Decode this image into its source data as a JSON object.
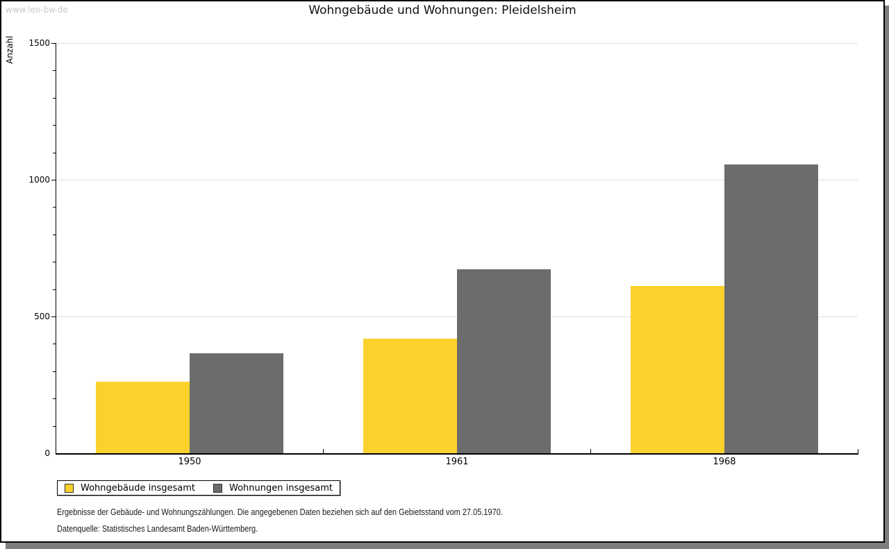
{
  "watermark": "www.leo-bw.de",
  "title": "Wohngebäude und Wohnungen: Pleidelsheim",
  "chart_data": {
    "type": "bar",
    "title": "Wohngebäude und Wohnungen: Pleidelsheim",
    "xlabel": "",
    "ylabel": "Anzahl",
    "categories": [
      "1950",
      "1961",
      "1968"
    ],
    "series": [
      {
        "name": "Wohngebäude insgesamt",
        "color": "#fbd22c",
        "values": [
          262,
          419,
          611
        ]
      },
      {
        "name": "Wohnungen insgesamt",
        "color": "#6c6c6c",
        "values": [
          366,
          672,
          1057
        ]
      }
    ],
    "ylim": [
      0,
      1500
    ],
    "yticks": [
      0,
      500,
      1000,
      1500
    ],
    "minor_tick_step": 100,
    "grid": "horizontal-major",
    "legend_position": "bottom-left"
  },
  "legend": {
    "items": [
      {
        "label": "Wohngebäude insgesamt",
        "color": "#fbd22c"
      },
      {
        "label": "Wohnungen insgesamt",
        "color": "#6c6c6c"
      }
    ]
  },
  "footnotes": {
    "line1": "Ergebnisse der Gebäude- und Wohnungszählungen. Die angegebenen Daten beziehen sich auf den Gebietsstand vom 27.05.1970.",
    "line2": "Datenquelle: Statistisches Landesamt Baden-Württemberg."
  },
  "colors": {
    "bar_yellow": "#fbd22c",
    "bar_gray": "#6c6c6c",
    "grid": "#e0e0e0",
    "axis": "#000000",
    "watermark": "#c9c9c9",
    "shadow": "#7d7d7d"
  }
}
